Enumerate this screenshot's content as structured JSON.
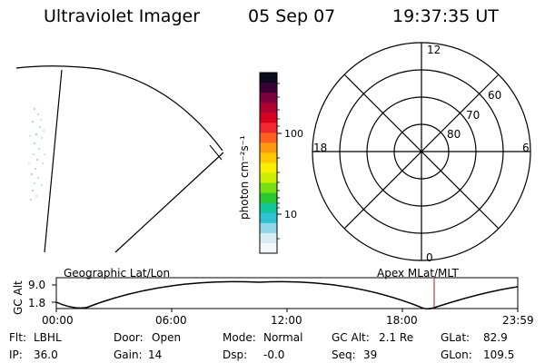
{
  "header": {
    "title": "Ultraviolet Imager",
    "date": "05 Sep 07",
    "time": "19:37:35 UT"
  },
  "colorbar": {
    "label": "photon cm⁻²s⁻¹",
    "tick_100": "100",
    "tick_10": "10",
    "colors": [
      "#0a0a1e",
      "#3a0032",
      "#7a0040",
      "#b00030",
      "#d80020",
      "#f02830",
      "#ff6020",
      "#ff9a10",
      "#ffc800",
      "#f8f000",
      "#c8f000",
      "#78e010",
      "#28c830",
      "#10c898",
      "#30c0d8",
      "#90d8e8",
      "#d8eef0",
      "#f4f8f8"
    ]
  },
  "polar": {
    "labels": {
      "top": "12",
      "left": "18",
      "right": "6",
      "bottom": "0"
    },
    "lat_labels": [
      "60",
      "70",
      "80"
    ]
  },
  "timeline": {
    "left_title": "Geographic Lat/Lon",
    "right_title": "Apex MLat/MLT",
    "axis_label": "GC Alt",
    "y_top": "9.0",
    "y_bottom": "1.8",
    "x_labels": [
      "00:00",
      "06:00",
      "12:00",
      "18:00",
      "23:59"
    ],
    "marker_color": "#c04040"
  },
  "info": {
    "flt_label": "Flt:",
    "flt_value": "LBHL",
    "ip_label": "IP:",
    "ip_value": "36.0",
    "door_label": "Door:",
    "door_value": "Open",
    "gain_label": "Gain:",
    "gain_value": "14",
    "mode_label": "Mode:",
    "mode_value": "Normal",
    "dsp_label": "Dsp:",
    "dsp_value": "-0.0",
    "gcalt_label": "GC Alt:",
    "gcalt_value": "2.1 Re",
    "seq_label": "Seq:",
    "seq_value": "39",
    "glat_label": "GLat:",
    "glat_value": "82.9",
    "glon_label": "GLon:",
    "glon_value": "109.5"
  }
}
